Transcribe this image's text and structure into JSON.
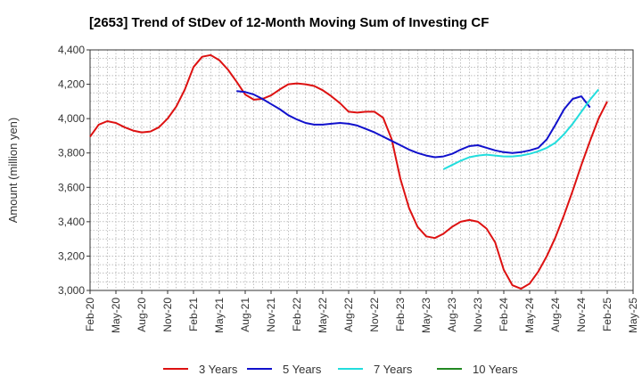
{
  "chart_data": {
    "type": "line",
    "title": "[2653]  Trend of StDev of 12-Month Moving Sum of Investing CF",
    "xlabel": "",
    "ylabel": "Amount (million yen)",
    "ylim": [
      3000,
      4400
    ],
    "yticks": [
      3000,
      3200,
      3400,
      3600,
      3800,
      4000,
      4200,
      4400
    ],
    "ytick_labels": [
      "3,000",
      "3,200",
      "3,400",
      "3,600",
      "3,800",
      "4,000",
      "4,200",
      "4,400"
    ],
    "x_start": "Feb-20",
    "xtick_labels": [
      "Feb-20",
      "May-20",
      "Aug-20",
      "Nov-20",
      "Feb-21",
      "May-21",
      "Aug-21",
      "Nov-21",
      "Feb-22",
      "May-22",
      "Aug-22",
      "Nov-22",
      "Feb-23",
      "May-23",
      "Aug-23",
      "Nov-23",
      "Feb-24",
      "May-24",
      "Aug-24",
      "Nov-24",
      "Feb-25",
      "May-25"
    ],
    "grid": true,
    "legend_position": "bottom",
    "series": [
      {
        "name": "3 Years",
        "color": "#dd1111",
        "start": "Feb-20",
        "values": [
          3895,
          3965,
          3985,
          3975,
          3950,
          3930,
          3920,
          3925,
          3950,
          4000,
          4070,
          4170,
          4300,
          4360,
          4370,
          4340,
          4285,
          4215,
          4140,
          4110,
          4115,
          4135,
          4170,
          4200,
          4205,
          4200,
          4190,
          4165,
          4130,
          4090,
          4040,
          4035,
          4040,
          4040,
          4005,
          3880,
          3650,
          3480,
          3370,
          3315,
          3305,
          3330,
          3370,
          3400,
          3410,
          3400,
          3360,
          3280,
          3120,
          3030,
          3010,
          3040,
          3110,
          3200,
          3310,
          3440,
          3580,
          3730,
          3870,
          4000,
          4100
        ]
      },
      {
        "name": "5 Years",
        "color": "#1111cc",
        "start": "Jul-21",
        "values": [
          4160,
          4155,
          4140,
          4115,
          4085,
          4055,
          4020,
          3995,
          3975,
          3965,
          3965,
          3970,
          3975,
          3970,
          3960,
          3940,
          3920,
          3895,
          3870,
          3845,
          3820,
          3800,
          3785,
          3775,
          3780,
          3795,
          3820,
          3840,
          3845,
          3830,
          3815,
          3805,
          3800,
          3805,
          3815,
          3830,
          3880,
          3965,
          4055,
          4115,
          4130,
          4065
        ]
      },
      {
        "name": "7 Years",
        "color": "#22dddd",
        "start": "Jul-23",
        "values": [
          3705,
          3730,
          3755,
          3775,
          3785,
          3790,
          3785,
          3780,
          3780,
          3785,
          3795,
          3810,
          3830,
          3860,
          3910,
          3970,
          4040,
          4110,
          4170
        ]
      },
      {
        "name": "10 Years",
        "color": "#228822",
        "start": "Jul-23",
        "values": []
      }
    ]
  }
}
